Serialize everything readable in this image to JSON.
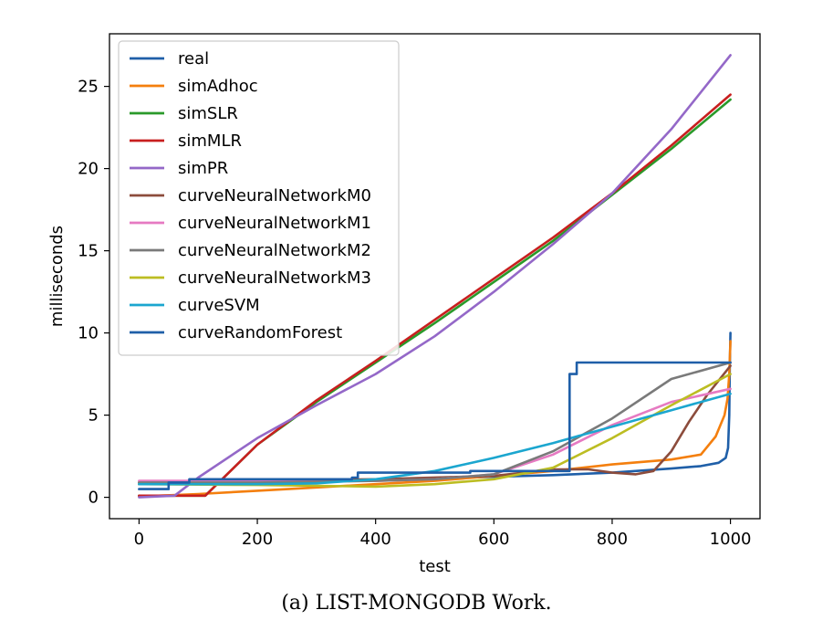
{
  "chart_data": {
    "type": "line",
    "xlabel": "test",
    "ylabel": "milliseconds",
    "xlim": [
      -50,
      1050
    ],
    "ylim": [
      -1.3,
      28.2
    ],
    "xticks": [
      0,
      200,
      400,
      600,
      800,
      1000
    ],
    "yticks": [
      0,
      5,
      10,
      15,
      20,
      25
    ],
    "legend_position": "upper-left",
    "series": [
      {
        "name": "real",
        "color": "#1f5fa8",
        "points": [
          [
            0,
            0.8
          ],
          [
            100,
            0.85
          ],
          [
            200,
            0.9
          ],
          [
            300,
            0.95
          ],
          [
            400,
            1.05
          ],
          [
            500,
            1.15
          ],
          [
            600,
            1.25
          ],
          [
            700,
            1.35
          ],
          [
            800,
            1.5
          ],
          [
            900,
            1.75
          ],
          [
            950,
            1.9
          ],
          [
            980,
            2.1
          ],
          [
            992,
            2.4
          ],
          [
            996,
            3.0
          ],
          [
            998,
            5.0
          ],
          [
            999,
            8.0
          ],
          [
            1000,
            10.0
          ]
        ]
      },
      {
        "name": "simAdhoc",
        "color": "#f47f0e",
        "points": [
          [
            0,
            0.05
          ],
          [
            100,
            0.2
          ],
          [
            200,
            0.4
          ],
          [
            300,
            0.6
          ],
          [
            400,
            0.8
          ],
          [
            500,
            1.0
          ],
          [
            600,
            1.3
          ],
          [
            700,
            1.6
          ],
          [
            800,
            2.0
          ],
          [
            900,
            2.3
          ],
          [
            950,
            2.6
          ],
          [
            975,
            3.7
          ],
          [
            990,
            5.0
          ],
          [
            995,
            6.0
          ],
          [
            998,
            7.5
          ],
          [
            1000,
            9.5
          ]
        ]
      },
      {
        "name": "simSLR",
        "color": "#2a9a2a",
        "points": [
          [
            0,
            0.1
          ],
          [
            100,
            0.1
          ],
          [
            112,
            0.1
          ],
          [
            200,
            3.2
          ],
          [
            300,
            5.8
          ],
          [
            400,
            8.2
          ],
          [
            500,
            10.6
          ],
          [
            600,
            13.1
          ],
          [
            700,
            15.6
          ],
          [
            800,
            18.4
          ],
          [
            900,
            21.2
          ],
          [
            1000,
            24.2
          ]
        ]
      },
      {
        "name": "simMLR",
        "color": "#c81f1f",
        "points": [
          [
            0,
            0.1
          ],
          [
            100,
            0.1
          ],
          [
            112,
            0.1
          ],
          [
            200,
            3.2
          ],
          [
            300,
            5.9
          ],
          [
            400,
            8.3
          ],
          [
            500,
            10.8
          ],
          [
            600,
            13.3
          ],
          [
            700,
            15.8
          ],
          [
            800,
            18.5
          ],
          [
            900,
            21.4
          ],
          [
            1000,
            24.5
          ]
        ]
      },
      {
        "name": "simPR",
        "color": "#9468c8",
        "points": [
          [
            0,
            0.0
          ],
          [
            60,
            0.1
          ],
          [
            100,
            1.2
          ],
          [
            200,
            3.6
          ],
          [
            300,
            5.6
          ],
          [
            400,
            7.5
          ],
          [
            500,
            9.8
          ],
          [
            600,
            12.5
          ],
          [
            700,
            15.4
          ],
          [
            800,
            18.5
          ],
          [
            900,
            22.4
          ],
          [
            1000,
            26.9
          ]
        ]
      },
      {
        "name": "curveNeuralNetworkM0",
        "color": "#8c4c3c",
        "points": [
          [
            0,
            0.9
          ],
          [
            200,
            1.0
          ],
          [
            400,
            1.1
          ],
          [
            600,
            1.3
          ],
          [
            700,
            1.7
          ],
          [
            760,
            1.7
          ],
          [
            800,
            1.5
          ],
          [
            840,
            1.4
          ],
          [
            870,
            1.6
          ],
          [
            900,
            2.8
          ],
          [
            930,
            4.6
          ],
          [
            960,
            6.2
          ],
          [
            1000,
            8.0
          ]
        ]
      },
      {
        "name": "curveNeuralNetworkM1",
        "color": "#e67ac2",
        "points": [
          [
            0,
            1.0
          ],
          [
            200,
            1.0
          ],
          [
            400,
            1.0
          ],
          [
            500,
            1.1
          ],
          [
            600,
            1.4
          ],
          [
            700,
            2.6
          ],
          [
            800,
            4.4
          ],
          [
            900,
            5.8
          ],
          [
            1000,
            6.6
          ]
        ]
      },
      {
        "name": "curveNeuralNetworkM2",
        "color": "#7a7a7a",
        "points": [
          [
            0,
            0.9
          ],
          [
            200,
            0.9
          ],
          [
            400,
            1.0
          ],
          [
            500,
            1.1
          ],
          [
            600,
            1.4
          ],
          [
            700,
            2.8
          ],
          [
            800,
            4.8
          ],
          [
            900,
            7.2
          ],
          [
            1000,
            8.2
          ]
        ]
      },
      {
        "name": "curveNeuralNetworkM3",
        "color": "#bcbd22",
        "points": [
          [
            0,
            0.8
          ],
          [
            200,
            0.75
          ],
          [
            400,
            0.65
          ],
          [
            500,
            0.8
          ],
          [
            600,
            1.1
          ],
          [
            700,
            1.8
          ],
          [
            800,
            3.6
          ],
          [
            900,
            5.6
          ],
          [
            1000,
            7.5
          ]
        ]
      },
      {
        "name": "curveSVM",
        "color": "#1ba6cf",
        "points": [
          [
            0,
            0.8
          ],
          [
            100,
            0.8
          ],
          [
            200,
            0.8
          ],
          [
            300,
            0.85
          ],
          [
            400,
            1.1
          ],
          [
            500,
            1.6
          ],
          [
            600,
            2.4
          ],
          [
            700,
            3.3
          ],
          [
            800,
            4.3
          ],
          [
            900,
            5.3
          ],
          [
            1000,
            6.3
          ]
        ]
      },
      {
        "name": "curveRandomForest",
        "color": "#1f5fa8",
        "points": [
          [
            0,
            0.5
          ],
          [
            50,
            0.5
          ],
          [
            50,
            0.9
          ],
          [
            85,
            0.9
          ],
          [
            85,
            1.1
          ],
          [
            360,
            1.1
          ],
          [
            360,
            1.2
          ],
          [
            370,
            1.2
          ],
          [
            370,
            1.5
          ],
          [
            500,
            1.5
          ],
          [
            560,
            1.5
          ],
          [
            560,
            1.6
          ],
          [
            728,
            1.6
          ],
          [
            728,
            7.5
          ],
          [
            740,
            7.5
          ],
          [
            740,
            8.2
          ],
          [
            1000,
            8.2
          ]
        ]
      }
    ]
  },
  "caption": "(a) LIST-MONGODB Work."
}
